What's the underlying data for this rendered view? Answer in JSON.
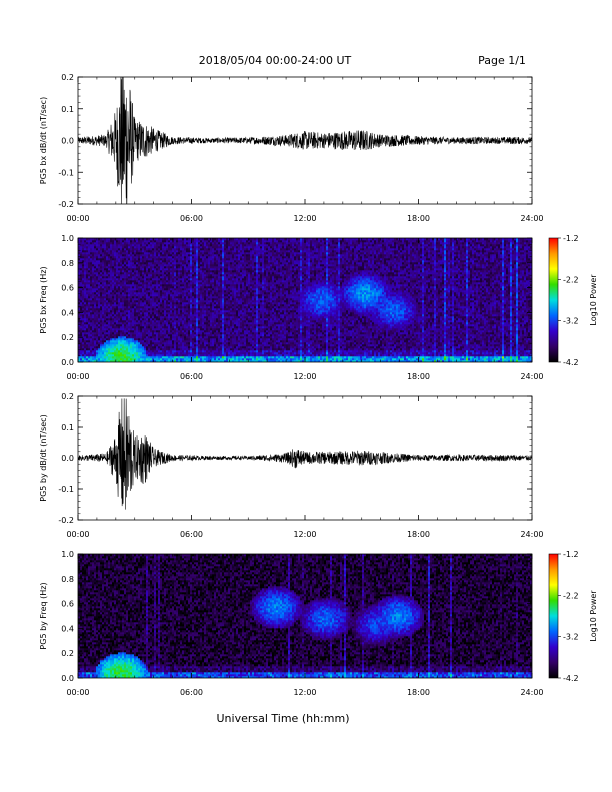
{
  "header": {
    "title": "2018/05/04  00:00-24:00 UT",
    "page": "Page 1/1"
  },
  "xlabel": "Universal Time (hh:mm)",
  "colorbar": {
    "label": "Log10 Power",
    "ticks": [
      "-1.2",
      "-2.2",
      "-3.2",
      "-4.2"
    ],
    "colors": [
      "#ff0000",
      "#ff9900",
      "#ffff00",
      "#33dd00",
      "#00dddd",
      "#0066ff",
      "#3300cc",
      "#330066",
      "#000000"
    ]
  },
  "chart_data": [
    {
      "type": "line",
      "id": "pg5-bx-dbdt",
      "ylabel": "PG5 bx dB/dt (nT/sec)",
      "xlim": [
        0,
        24
      ],
      "ylim": [
        -0.2,
        0.2
      ],
      "xticks": [
        "00:00",
        "06:00",
        "12:00",
        "18:00",
        "24:00"
      ],
      "yticks": [
        "-0.2",
        "-0.1",
        "0.0",
        "0.1",
        "0.2"
      ],
      "envelope": {
        "x": [
          0,
          1.5,
          2.0,
          2.3,
          2.6,
          3.0,
          3.5,
          4.0,
          5.0,
          7.0,
          9.0,
          11.0,
          11.5,
          12.0,
          13.0,
          14.0,
          15.0,
          16.0,
          17.0,
          18.0,
          19.0,
          20.0,
          21.0,
          22.0,
          23.0,
          24.0
        ],
        "amp": [
          0.01,
          0.02,
          0.1,
          0.25,
          0.25,
          0.07,
          0.06,
          0.04,
          0.012,
          0.008,
          0.01,
          0.018,
          0.025,
          0.03,
          0.025,
          0.03,
          0.035,
          0.02,
          0.018,
          0.014,
          0.012,
          0.01,
          0.012,
          0.01,
          0.012,
          0.01
        ]
      }
    },
    {
      "type": "heatmap",
      "id": "pg5-bx-freq",
      "ylabel": "PG5 bx Freq (Hz)",
      "xlim": [
        0,
        24
      ],
      "ylim": [
        0.0,
        1.0
      ],
      "xticks": [
        "00:00",
        "06:00",
        "12:00",
        "18:00",
        "24:00"
      ],
      "yticks": [
        "0.0",
        "0.2",
        "0.4",
        "0.6",
        "0.8",
        "1.0"
      ],
      "zlim": [
        -4.2,
        -1.2
      ],
      "background": -3.75,
      "features": [
        {
          "t": 12.9,
          "f": 0.5,
          "power": -3.1
        },
        {
          "t": 15.2,
          "f": 0.55,
          "power": -2.95
        },
        {
          "t": 16.7,
          "f": 0.42,
          "power": -3.1
        },
        {
          "t": 2.3,
          "f": 0.03,
          "power": -2.4
        }
      ]
    },
    {
      "type": "line",
      "id": "pg5-by-dbdt",
      "ylabel": "PG5 by dB/dt (nT/sec)",
      "xlim": [
        0,
        24
      ],
      "ylim": [
        -0.2,
        0.2
      ],
      "xticks": [
        "00:00",
        "06:00",
        "12:00",
        "18:00",
        "24:00"
      ],
      "yticks": [
        "-0.2",
        "-0.1",
        "0.0",
        "0.1",
        "0.2"
      ],
      "envelope": {
        "x": [
          0,
          1.5,
          2.0,
          2.3,
          2.6,
          3.0,
          3.5,
          4.0,
          5.0,
          7.0,
          9.0,
          11.0,
          11.5,
          12.0,
          13.0,
          14.0,
          15.0,
          16.0,
          17.0,
          18.0,
          19.0,
          20.0,
          21.0,
          22.0,
          23.0,
          24.0
        ],
        "amp": [
          0.008,
          0.015,
          0.08,
          0.2,
          0.2,
          0.07,
          0.09,
          0.03,
          0.01,
          0.006,
          0.006,
          0.015,
          0.035,
          0.02,
          0.02,
          0.022,
          0.025,
          0.02,
          0.014,
          0.01,
          0.01,
          0.01,
          0.01,
          0.01,
          0.01,
          0.008
        ]
      }
    },
    {
      "type": "heatmap",
      "id": "pg5-by-freq",
      "ylabel": "PG5 by Freq (Hz)",
      "xlim": [
        0,
        24
      ],
      "ylim": [
        0.0,
        1.0
      ],
      "xticks": [
        "00:00",
        "06:00",
        "12:00",
        "18:00",
        "24:00"
      ],
      "yticks": [
        "0.0",
        "0.2",
        "0.4",
        "0.6",
        "0.8",
        "1.0"
      ],
      "zlim": [
        -4.2,
        -1.2
      ],
      "background": -4.0,
      "features": [
        {
          "t": 10.5,
          "f": 0.57,
          "power": -3.0
        },
        {
          "t": 13.1,
          "f": 0.48,
          "power": -3.1
        },
        {
          "t": 15.8,
          "f": 0.43,
          "power": -3.2
        },
        {
          "t": 16.9,
          "f": 0.5,
          "power": -3.0
        },
        {
          "t": 2.3,
          "f": 0.03,
          "power": -2.4
        }
      ]
    }
  ]
}
